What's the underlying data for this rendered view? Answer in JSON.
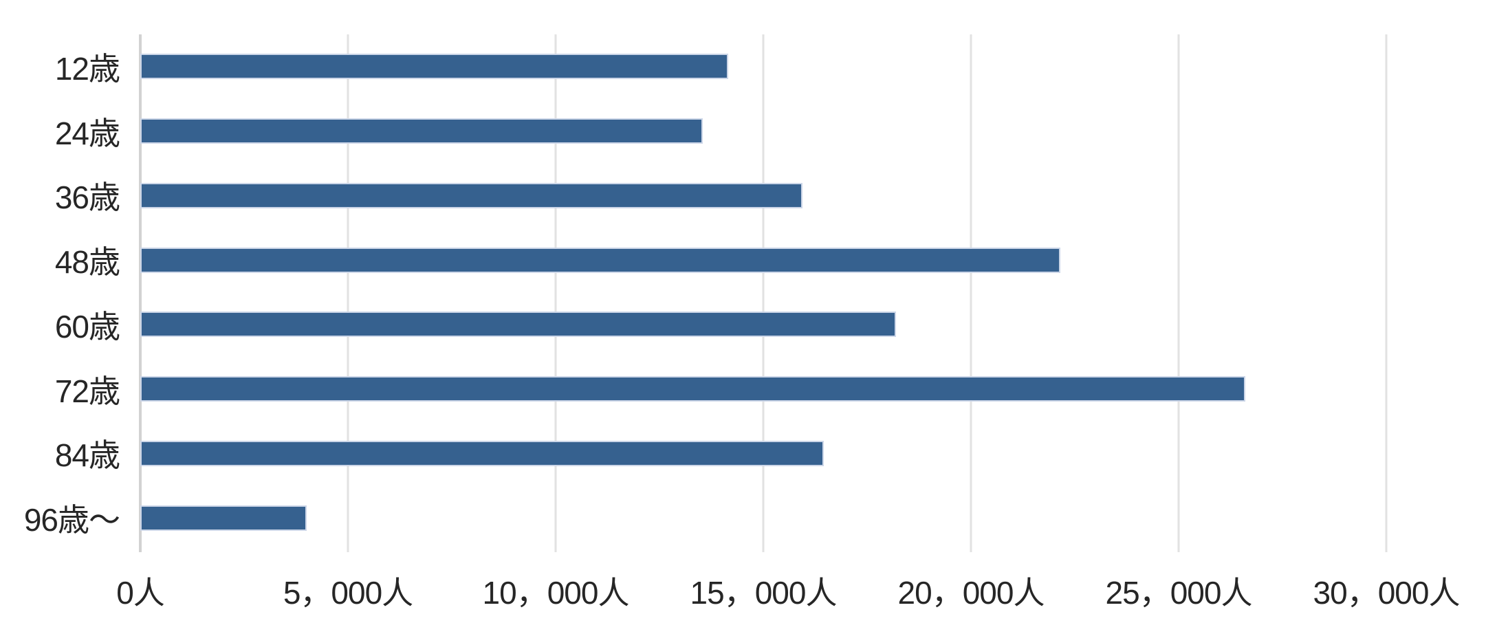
{
  "chart_data": {
    "type": "bar",
    "orientation": "horizontal",
    "title": "",
    "xlabel": "",
    "ylabel": "",
    "categories": [
      "12歳",
      "24歳",
      "36歳",
      "48歳",
      "60歳",
      "72歳",
      "84歳",
      "96歳〜"
    ],
    "values": [
      14150,
      13550,
      15950,
      22150,
      18200,
      26600,
      16450,
      4000
    ],
    "unit": "人",
    "x_tick_values": [
      0,
      5000,
      10000,
      15000,
      20000,
      25000,
      30000
    ],
    "x_tick_labels": [
      "0人",
      "5，000人",
      "10，000人",
      "15，000人",
      "20，000人",
      "25，000人",
      "30，000人"
    ],
    "xlim": [
      0,
      30000
    ],
    "grid": true,
    "legend": "none",
    "colors": {
      "bar_fill": "#36618f",
      "bar_outline": "#ccd6e8",
      "gridline": "#e2e2e2",
      "axis_line": "#d2d2d2",
      "text": "#262626",
      "background": "#ffffff"
    }
  }
}
